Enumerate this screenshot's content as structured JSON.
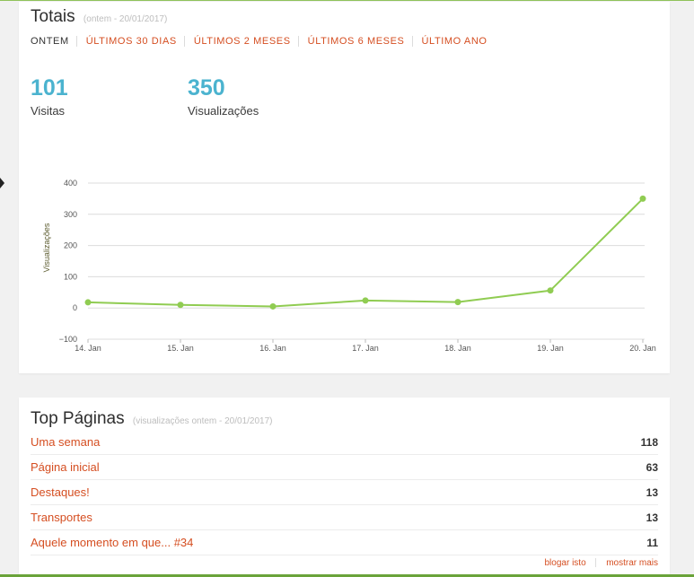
{
  "totals": {
    "title": "Totais",
    "subtitle": "(ontem - 20/01/2017)",
    "tabs": [
      "ONTEM",
      "ÚLTIMOS 30 DIAS",
      "ÚLTIMOS 2 MESES",
      "ÚLTIMOS 6 MESES",
      "ÚLTIMO ANO"
    ],
    "active_tab": "ONTEM",
    "visits": {
      "value": "101",
      "label": "Visitas"
    },
    "views": {
      "value": "350",
      "label": "Visualizações"
    }
  },
  "chart_data": {
    "type": "line",
    "categories": [
      "14. Jan",
      "15. Jan",
      "16. Jan",
      "17. Jan",
      "18. Jan",
      "19. Jan",
      "20. Jan"
    ],
    "series": [
      {
        "values": [
          18,
          10,
          5,
          24,
          19,
          56,
          350
        ]
      }
    ],
    "ylabel": "Visualizações",
    "xlabel": "",
    "yticks": [
      400,
      300,
      200,
      100,
      0,
      -100
    ],
    "ylim": [
      -100,
      400
    ],
    "grid": true,
    "line_color": "#90cc52"
  },
  "top_pages": {
    "title": "Top Páginas",
    "subtitle": "(visualizações ontem - 20/01/2017)",
    "rows": [
      {
        "label": "Uma semana",
        "value": "118"
      },
      {
        "label": "Página inicial",
        "value": "63"
      },
      {
        "label": "Destaques!",
        "value": "13"
      },
      {
        "label": "Transportes",
        "value": "13"
      },
      {
        "label": "Aquele momento em que... #34",
        "value": "11"
      }
    ],
    "blog_link": "blogar isto",
    "more_link": "mostrar mais"
  }
}
